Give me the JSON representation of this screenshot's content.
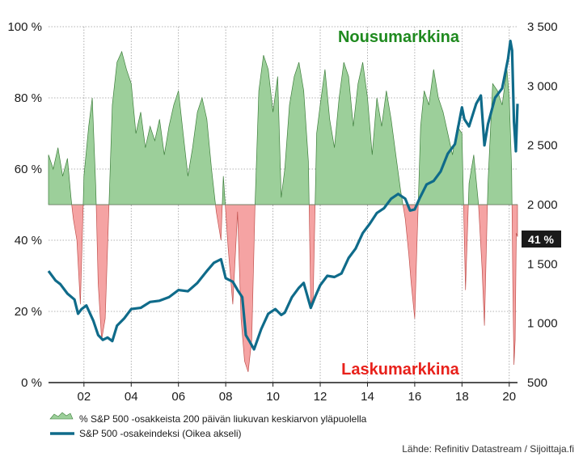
{
  "chart_data": {
    "type": "area+line",
    "title": "",
    "xlabel": "",
    "ylabel": "",
    "x_tick_labels": [
      "02",
      "04",
      "06",
      "08",
      "10",
      "12",
      "14",
      "16",
      "18",
      "20"
    ],
    "x_ticks": [
      2002,
      2004,
      2006,
      2008,
      2010,
      2012,
      2014,
      2016,
      2018,
      2020
    ],
    "xlim": [
      2000.5,
      2020.35
    ],
    "left_axis": {
      "ylim": [
        0,
        100
      ],
      "ticks": [
        0,
        20,
        40,
        60,
        80,
        100
      ],
      "tick_labels": [
        "0 %",
        "20 %",
        "40 %",
        "60 %",
        "80 %",
        "100 %"
      ]
    },
    "right_axis": {
      "ylim": [
        500,
        3500
      ],
      "ticks": [
        500,
        1000,
        1500,
        2000,
        2500,
        3000,
        3500
      ],
      "tick_labels": [
        "500",
        "1 000",
        "1 500",
        "2 000",
        "2 500",
        "3 000",
        "3 500"
      ]
    },
    "threshold": 50,
    "grid": true,
    "annotations": {
      "bull": "Nousumarkkina",
      "bear": "Laskumarkkina",
      "current_badge": "41 %"
    },
    "series": [
      {
        "name": "% S&P 500 -osakkeista 200 päivän liukuvan keskiarvon yläpuolella",
        "axis": "left",
        "style": "area",
        "x": [
          2000.5,
          2000.7,
          2000.9,
          2001.1,
          2001.3,
          2001.45,
          2001.55,
          2001.7,
          2001.85,
          2002.0,
          2002.2,
          2002.35,
          2002.5,
          2002.6,
          2002.75,
          2002.9,
          2003.05,
          2003.2,
          2003.4,
          2003.6,
          2003.8,
          2004.0,
          2004.2,
          2004.4,
          2004.6,
          2004.8,
          2005.0,
          2005.2,
          2005.4,
          2005.6,
          2005.8,
          2006.0,
          2006.2,
          2006.4,
          2006.6,
          2006.8,
          2007.0,
          2007.2,
          2007.4,
          2007.6,
          2007.8,
          2007.9,
          2008.1,
          2008.3,
          2008.5,
          2008.65,
          2008.8,
          2008.95,
          2009.1,
          2009.25,
          2009.4,
          2009.6,
          2009.8,
          2010.0,
          2010.2,
          2010.35,
          2010.5,
          2010.7,
          2010.9,
          2011.1,
          2011.3,
          2011.5,
          2011.6,
          2011.7,
          2011.85,
          2012.0,
          2012.2,
          2012.4,
          2012.6,
          2012.8,
          2013.0,
          2013.2,
          2013.4,
          2013.6,
          2013.8,
          2014.0,
          2014.2,
          2014.4,
          2014.6,
          2014.8,
          2015.0,
          2015.2,
          2015.4,
          2015.6,
          2015.75,
          2015.85,
          2016.0,
          2016.1,
          2016.25,
          2016.4,
          2016.6,
          2016.8,
          2017.0,
          2017.2,
          2017.4,
          2017.6,
          2017.8,
          2018.0,
          2018.15,
          2018.3,
          2018.5,
          2018.7,
          2018.85,
          2018.95,
          2019.1,
          2019.3,
          2019.5,
          2019.7,
          2019.9,
          2020.0,
          2020.1,
          2020.15,
          2020.2,
          2020.25,
          2020.3,
          2020.35
        ],
        "values": [
          64,
          60,
          66,
          58,
          63,
          52,
          46,
          40,
          22,
          58,
          72,
          80,
          55,
          28,
          12,
          18,
          48,
          78,
          90,
          93,
          88,
          84,
          70,
          76,
          66,
          72,
          68,
          74,
          64,
          72,
          78,
          82,
          70,
          58,
          66,
          76,
          80,
          74,
          60,
          48,
          40,
          58,
          38,
          22,
          48,
          18,
          6,
          3,
          12,
          52,
          82,
          92,
          88,
          76,
          86,
          52,
          60,
          78,
          86,
          90,
          82,
          62,
          22,
          24,
          70,
          78,
          88,
          74,
          66,
          80,
          90,
          86,
          72,
          84,
          90,
          80,
          64,
          80,
          72,
          82,
          74,
          64,
          54,
          46,
          36,
          28,
          18,
          40,
          72,
          82,
          78,
          88,
          80,
          76,
          70,
          64,
          72,
          70,
          26,
          56,
          64,
          50,
          32,
          16,
          56,
          84,
          82,
          78,
          88,
          80,
          60,
          28,
          5,
          12,
          42,
          41
        ]
      },
      {
        "name": "S&P 500 -osakeindeksi (Oikea akseli)",
        "axis": "right",
        "style": "line",
        "color": "#0f6b8a",
        "x": [
          2000.5,
          2000.8,
          2001.0,
          2001.3,
          2001.6,
          2001.75,
          2001.9,
          2002.1,
          2002.4,
          2002.6,
          2002.8,
          2003.0,
          2003.2,
          2003.4,
          2003.7,
          2004.0,
          2004.4,
          2004.8,
          2005.2,
          2005.6,
          2006.0,
          2006.4,
          2006.8,
          2007.2,
          2007.5,
          2007.8,
          2008.0,
          2008.3,
          2008.5,
          2008.7,
          2008.85,
          2009.0,
          2009.2,
          2009.5,
          2009.8,
          2010.1,
          2010.35,
          2010.5,
          2010.8,
          2011.1,
          2011.3,
          2011.6,
          2011.8,
          2012.0,
          2012.3,
          2012.6,
          2012.9,
          2013.2,
          2013.5,
          2013.8,
          2014.1,
          2014.4,
          2014.7,
          2015.0,
          2015.3,
          2015.6,
          2015.8,
          2016.0,
          2016.2,
          2016.5,
          2016.8,
          2017.1,
          2017.4,
          2017.7,
          2018.0,
          2018.1,
          2018.3,
          2018.6,
          2018.8,
          2018.95,
          2019.1,
          2019.4,
          2019.7,
          2019.95,
          2020.05,
          2020.12,
          2020.2,
          2020.28,
          2020.35
        ],
        "values": [
          1440,
          1360,
          1330,
          1250,
          1200,
          1080,
          1120,
          1150,
          1020,
          900,
          860,
          880,
          850,
          980,
          1040,
          1120,
          1130,
          1180,
          1190,
          1220,
          1280,
          1270,
          1340,
          1440,
          1510,
          1540,
          1380,
          1350,
          1280,
          1220,
          900,
          850,
          780,
          950,
          1080,
          1120,
          1070,
          1090,
          1220,
          1300,
          1340,
          1130,
          1230,
          1320,
          1400,
          1390,
          1420,
          1550,
          1630,
          1760,
          1840,
          1930,
          1970,
          2050,
          2090,
          2050,
          1950,
          1960,
          2050,
          2170,
          2200,
          2280,
          2430,
          2510,
          2820,
          2720,
          2660,
          2850,
          2920,
          2500,
          2680,
          2900,
          2980,
          3230,
          3380,
          3300,
          2700,
          2450,
          2850
        ]
      }
    ]
  },
  "legend": {
    "item1": "% S&P 500 -osakkeista 200 päivän liukuvan keskiarvon yläpuolella",
    "item2": "S&P 500 -osakeindeksi (Oikea akseli)"
  },
  "source": "Lähde: Refinitiv Datastream / Sijoittaja.fi",
  "colors": {
    "bull_fill": "#9ccf9a",
    "bull_stroke": "#3e7f3c",
    "bear_fill": "#f5a3a3",
    "bear_stroke": "#c0504d",
    "line": "#0f6b8a",
    "bull_text": "#1f8a1f",
    "bear_text": "#e8211b",
    "badge": "#1a1a1a"
  }
}
